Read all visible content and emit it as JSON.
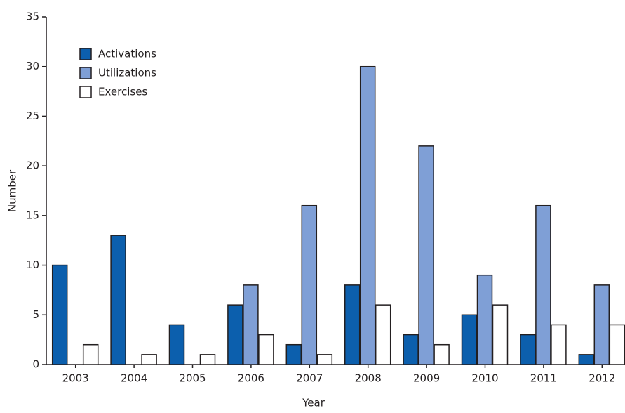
{
  "chart_data": {
    "type": "bar",
    "x_label": "Year",
    "y_label": "Number",
    "categories": [
      "2003",
      "2004",
      "2005",
      "2006",
      "2007",
      "2008",
      "2009",
      "2010",
      "2011",
      "2012"
    ],
    "series": [
      {
        "name": "Activations",
        "color": "#0c5fad",
        "values": [
          10,
          13,
          4,
          6,
          2,
          8,
          3,
          5,
          3,
          1
        ]
      },
      {
        "name": "Utilizations",
        "color": "#7f9fd6",
        "values": [
          0,
          0,
          0,
          8,
          16,
          30,
          22,
          9,
          16,
          8
        ]
      },
      {
        "name": "Exercises",
        "color": "#ffffff",
        "values": [
          2,
          1,
          1,
          3,
          1,
          6,
          2,
          6,
          4,
          4
        ]
      }
    ],
    "ylim": [
      0,
      35
    ],
    "yticks": [
      0,
      5,
      10,
      15,
      20,
      25,
      30,
      35
    ],
    "legend": "upper left"
  }
}
